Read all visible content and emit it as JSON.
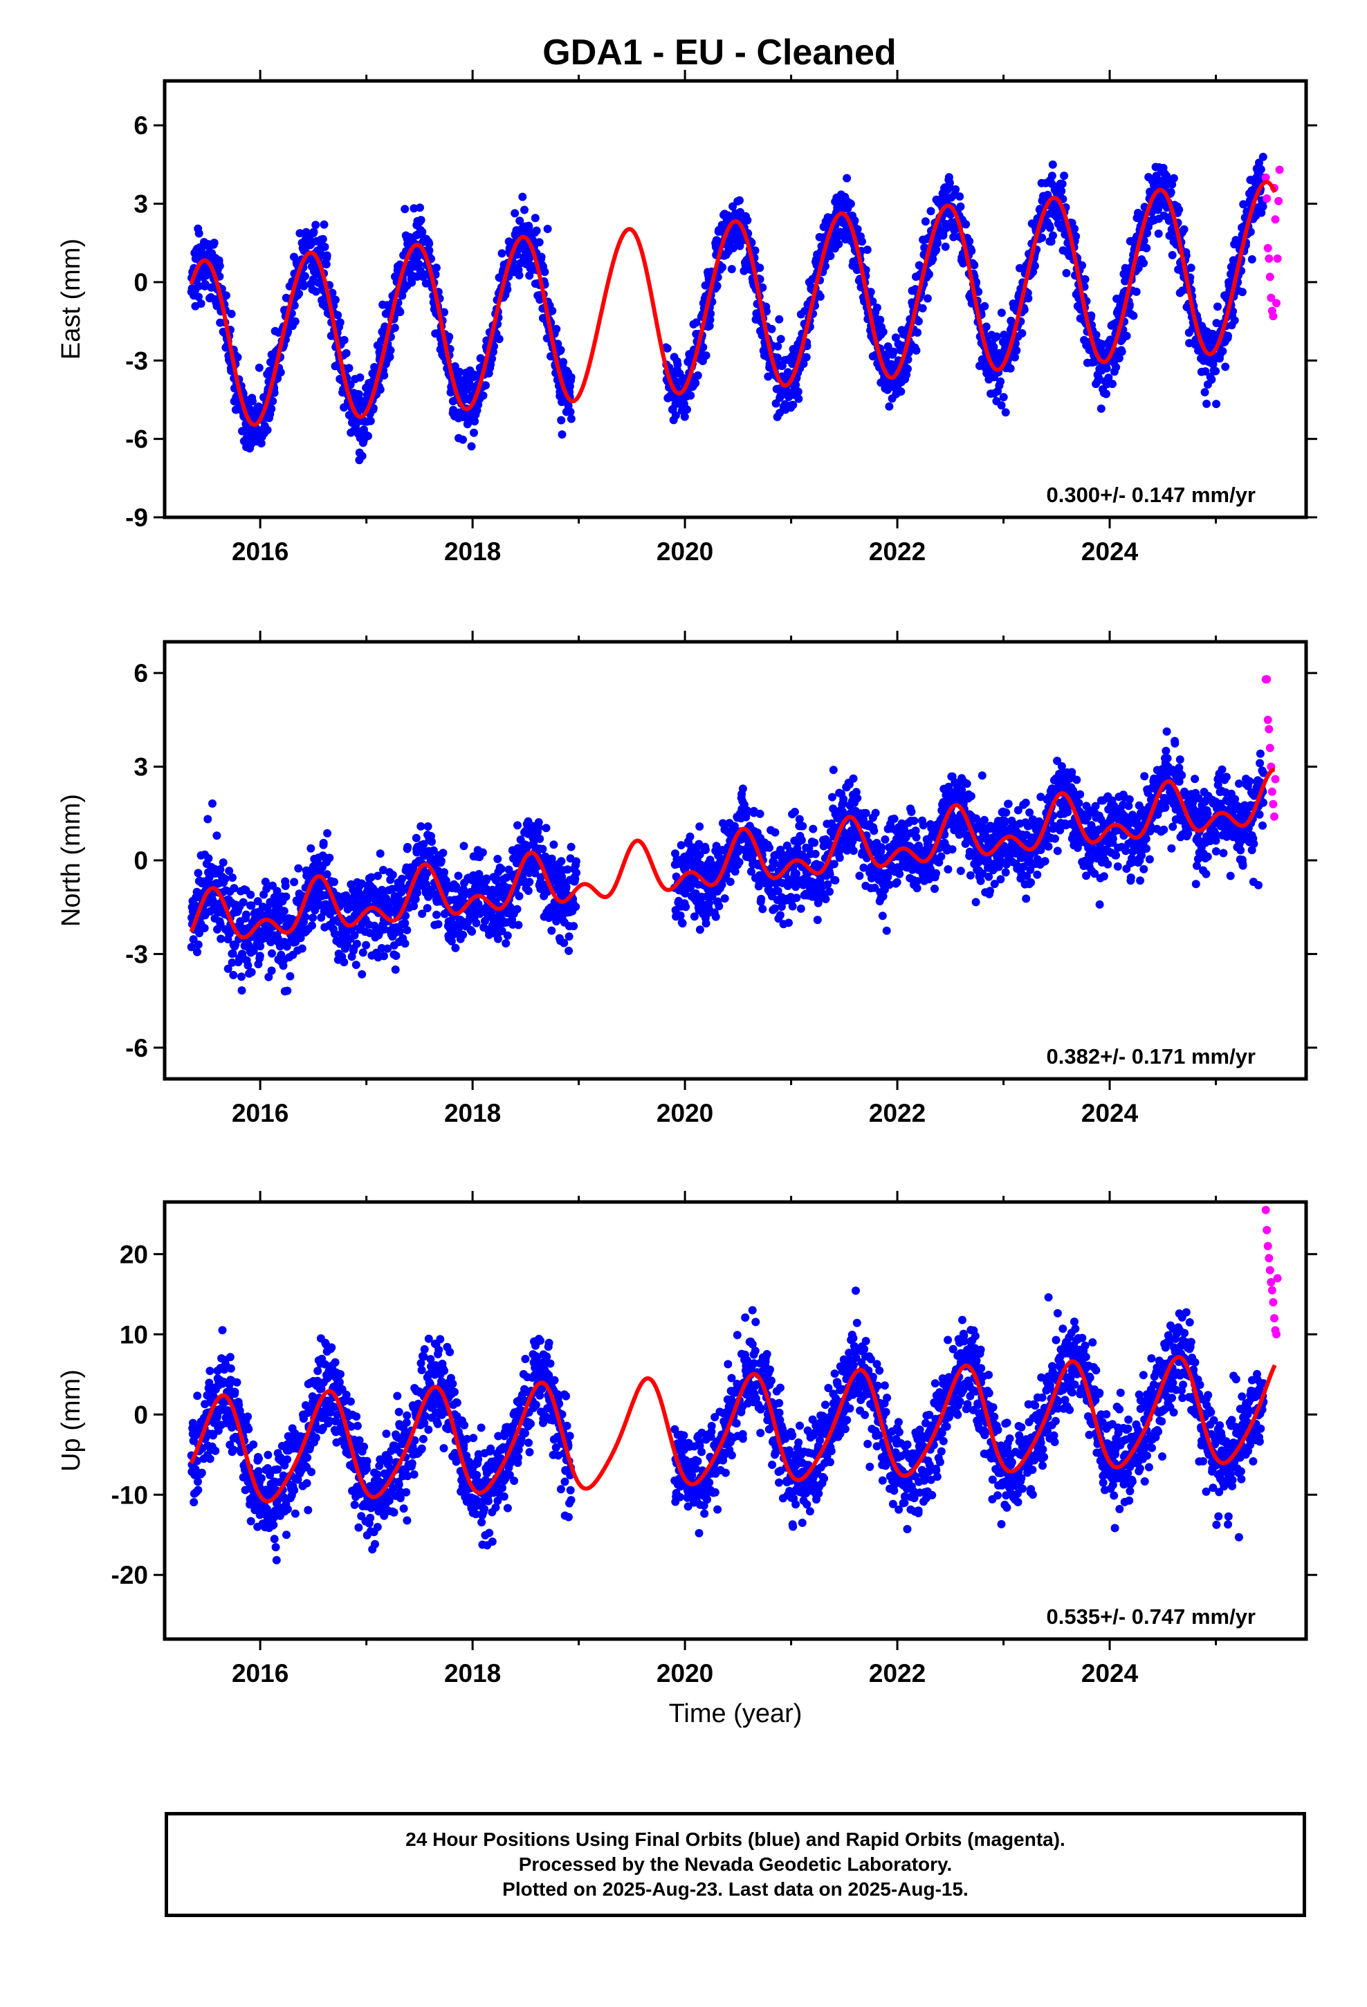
{
  "title": "GDA1  - EU - Cleaned",
  "xlabel": "Time (year)",
  "colors": {
    "final": "#0000ff",
    "rapid": "#ff00ff",
    "model": "#ff0000",
    "frame": "#000000"
  },
  "footer": {
    "line1": "24 Hour Positions Using Final Orbits (blue) and Rapid Orbits (magenta).",
    "line2": "Processed by the Nevada Geodetic Laboratory.",
    "line3": "Plotted on 2025-Aug-23. Last data on 2025-Aug-15."
  },
  "chart_data": [
    {
      "type": "scatter",
      "component": "East",
      "ylabel": "East (mm)",
      "xlim": [
        2015.1,
        2025.85
      ],
      "ylim": [
        -9,
        7.7
      ],
      "xticks": [
        2016,
        2018,
        2020,
        2022,
        2024
      ],
      "yticks": [
        -9,
        -6,
        -3,
        0,
        3,
        6
      ],
      "rate_label": "0.300+/- 0.147 mm/yr",
      "grid": false,
      "gaps": [
        [
          2018.93,
          2019.82
        ]
      ],
      "model": {
        "offset": -1.0,
        "rate": 0.3,
        "annual_amplitude": 3.2,
        "annual_phase_year": 0.46,
        "semiannual_amplitude": 0.15,
        "semiannual_phase_year": 0.1
      },
      "noise_sd": 0.95,
      "series": [
        {
          "name": "Final Orbits (blue)",
          "x_range": [
            2015.35,
            2025.45
          ],
          "point_count": 3200
        },
        {
          "name": "Rapid Orbits (magenta)",
          "x": [
            2025.47,
            2025.48,
            2025.49,
            2025.5,
            2025.51,
            2025.52,
            2025.53,
            2025.54,
            2025.55,
            2025.56,
            2025.57,
            2025.58,
            2025.59,
            2025.6
          ],
          "y": [
            4.0,
            3.2,
            1.3,
            0.9,
            0.2,
            -0.6,
            -1.1,
            -1.3,
            3.6,
            2.4,
            -0.8,
            0.9,
            3.1,
            4.3
          ]
        }
      ]
    },
    {
      "type": "scatter",
      "component": "North",
      "ylabel": "North (mm)",
      "xlim": [
        2015.1,
        2025.85
      ],
      "ylim": [
        -7,
        7
      ],
      "xticks": [
        2016,
        2018,
        2020,
        2022,
        2024
      ],
      "yticks": [
        -6,
        -3,
        0,
        3,
        6
      ],
      "rate_label": "0.382+/- 0.171 mm/yr",
      "grid": false,
      "gaps": [
        [
          2018.98,
          2019.9
        ]
      ],
      "model": {
        "offset": -0.3,
        "rate": 0.38,
        "annual_amplitude": 0.6,
        "annual_phase_year": 0.55,
        "semiannual_amplitude": 0.5,
        "semiannual_phase_year": 0.05
      },
      "noise_sd": 0.95,
      "series": [
        {
          "name": "Final Orbits (blue)",
          "x_range": [
            2015.35,
            2025.45
          ],
          "point_count": 3200
        },
        {
          "name": "Rapid Orbits (magenta)",
          "x": [
            2025.47,
            2025.48,
            2025.49,
            2025.5,
            2025.51,
            2025.52,
            2025.53,
            2025.54,
            2025.55,
            2025.56
          ],
          "y": [
            5.8,
            5.8,
            4.5,
            4.2,
            3.6,
            3.0,
            2.2,
            1.8,
            1.4,
            2.6
          ]
        }
      ]
    },
    {
      "type": "scatter",
      "component": "Up",
      "ylabel": "Up (mm)",
      "xlim": [
        2015.1,
        2025.85
      ],
      "ylim": [
        -28,
        26.5
      ],
      "xticks": [
        2016,
        2018,
        2020,
        2022,
        2024
      ],
      "yticks": [
        -20,
        -10,
        0,
        10,
        20
      ],
      "rate_label": "0.535+/- 0.747 mm/yr",
      "grid": false,
      "gaps": [
        [
          2018.93,
          2019.9
        ]
      ],
      "model": {
        "offset": -2.5,
        "rate": 0.53,
        "annual_amplitude": 6.5,
        "annual_phase_year": 0.62,
        "semiannual_amplitude": 1.0,
        "semiannual_phase_year": 0.2
      },
      "noise_sd": 4.2,
      "series": [
        {
          "name": "Final Orbits (blue)",
          "x_range": [
            2015.35,
            2025.45
          ],
          "point_count": 3200
        },
        {
          "name": "Rapid Orbits (magenta)",
          "x": [
            2025.47,
            2025.48,
            2025.49,
            2025.5,
            2025.51,
            2025.52,
            2025.53,
            2025.54,
            2025.55,
            2025.56,
            2025.57,
            2025.58
          ],
          "y": [
            25.5,
            23.0,
            21.0,
            19.5,
            18.0,
            16.5,
            15.5,
            14.0,
            12.0,
            10.5,
            10.0,
            17.0
          ]
        }
      ]
    }
  ]
}
